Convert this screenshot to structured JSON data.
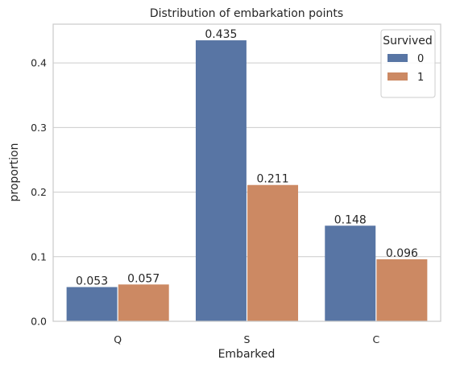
{
  "chart_data": {
    "type": "bar",
    "title": "Distribution of embarkation points",
    "xlabel": "Embarked",
    "ylabel": "proportion",
    "categories": [
      "Q",
      "S",
      "C"
    ],
    "series": [
      {
        "name": "0",
        "values": [
          0.053,
          0.435,
          0.148
        ],
        "color": "#5875a4"
      },
      {
        "name": "1",
        "values": [
          0.057,
          0.211,
          0.096
        ],
        "color": "#cc8963"
      }
    ],
    "data_labels": [
      [
        "0.053",
        "0.435",
        "0.148"
      ],
      [
        "0.057",
        "0.211",
        "0.096"
      ]
    ],
    "ylim": [
      0,
      0.46
    ],
    "yticks": [
      0.0,
      0.1,
      0.2,
      0.3,
      0.4
    ],
    "ytick_labels": [
      "0.0",
      "0.1",
      "0.2",
      "0.3",
      "0.4"
    ],
    "grid": "y",
    "legend": {
      "title": "Survived",
      "position": "top-right"
    }
  }
}
